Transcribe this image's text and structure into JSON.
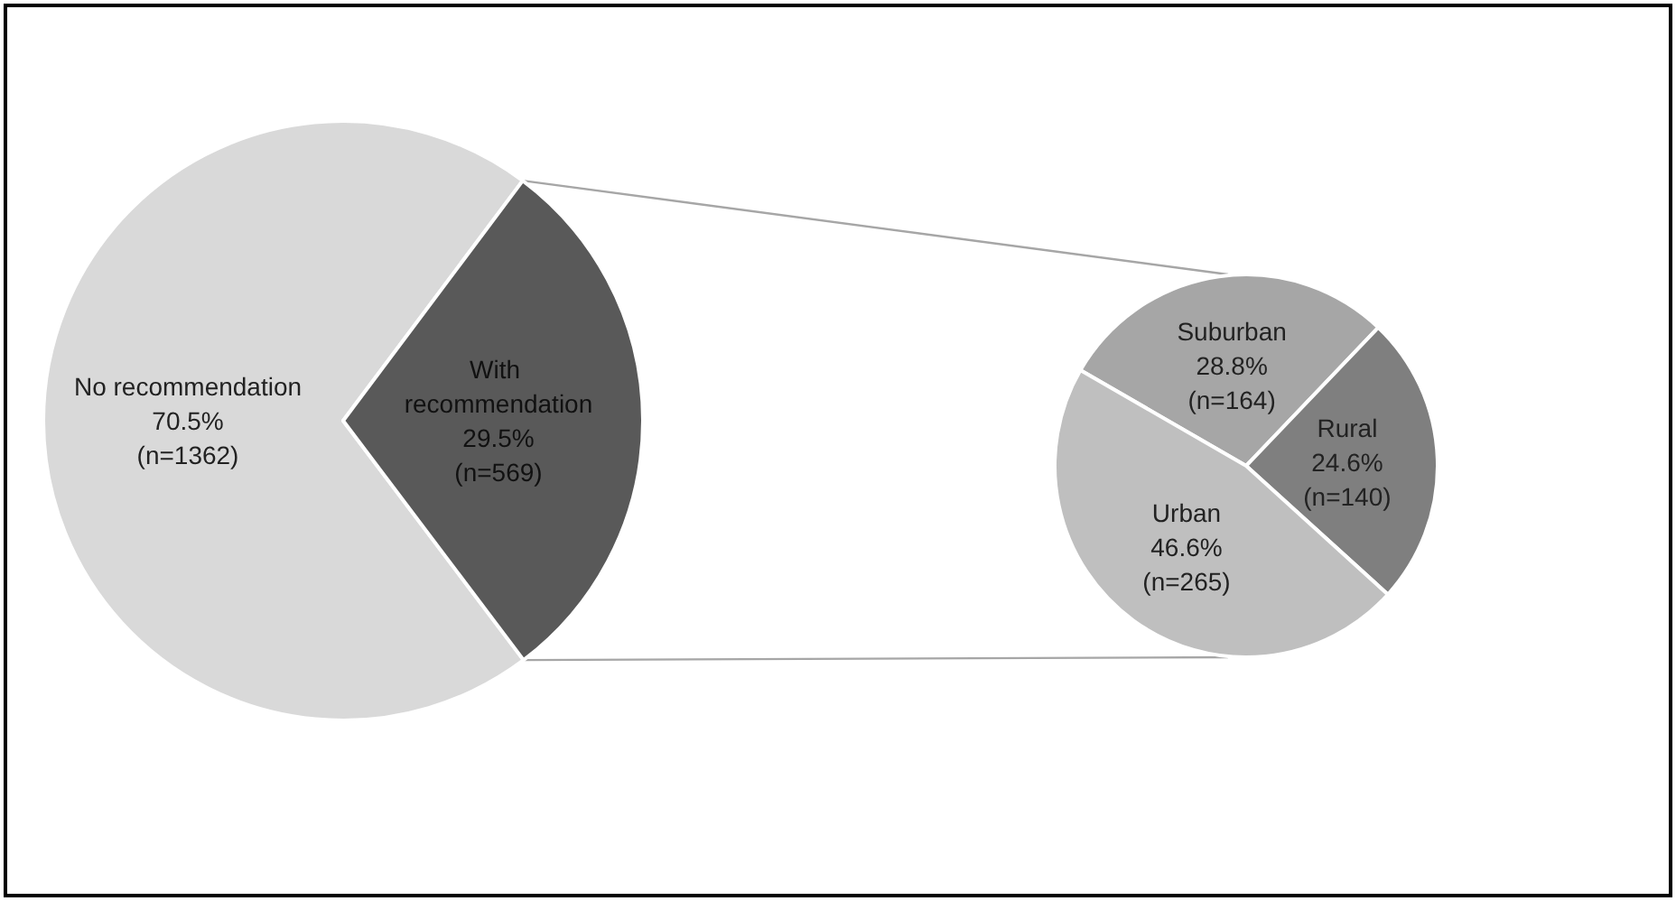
{
  "chart_data": [
    {
      "type": "pie",
      "categories": [
        "No recommendation",
        "With recommendation"
      ],
      "values": [
        70.5,
        29.5
      ],
      "colors": [
        "#d9d9d9",
        "#595959"
      ],
      "value_labels": [
        "70.5%\n(n=1362)",
        "29.5%\n(n=569)"
      ]
    },
    {
      "type": "pie",
      "categories": [
        "Suburban",
        "Rural",
        "Urban"
      ],
      "values": [
        28.8,
        24.6,
        46.6
      ],
      "colors": [
        "#a6a6a6",
        "#7f7f7f",
        "#bfbfbf"
      ],
      "value_labels": [
        "28.8%\n(n=164)",
        "24.6%\n(n=140)",
        "46.6%\n(n=265)"
      ]
    }
  ]
}
